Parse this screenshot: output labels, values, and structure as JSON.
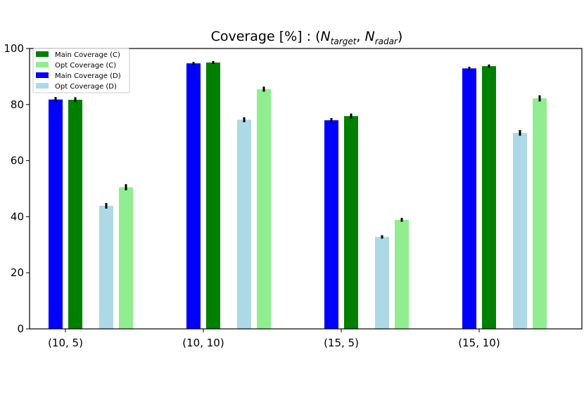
{
  "chart_data": {
    "type": "bar",
    "title": {
      "prefix": "Coverage [%] : (",
      "n1": "N",
      "sub1": "target",
      "sep": ", ",
      "n2": "N",
      "sub2": "radar",
      "suffix": ")"
    },
    "xlabel": "",
    "ylabel": "",
    "ylim": [
      0,
      100
    ],
    "yticks": [
      "0",
      "20",
      "40",
      "60",
      "80",
      "100"
    ],
    "categories": [
      "(10, 5)",
      "(10, 10)",
      "(15, 5)",
      "(15, 10)"
    ],
    "series": [
      {
        "name": "Main Coverage (D)",
        "color": "#0000ff",
        "values": [
          81.8,
          94.7,
          74.4,
          92.9
        ],
        "errors": [
          0.9,
          0.5,
          0.8,
          0.6
        ]
      },
      {
        "name": "Main Coverage (C)",
        "color": "#008000",
        "values": [
          81.7,
          95.0,
          75.9,
          93.7
        ],
        "errors": [
          0.9,
          0.5,
          0.9,
          0.6
        ]
      },
      {
        "name": "Opt Coverage (D)",
        "color": "#add8e6",
        "values": [
          43.9,
          74.6,
          32.8,
          69.9
        ],
        "errors": [
          1.0,
          0.9,
          0.6,
          1.0
        ]
      },
      {
        "name": "Opt Coverage (C)",
        "color": "#90ee90",
        "values": [
          50.5,
          85.5,
          38.9,
          82.2
        ],
        "errors": [
          1.1,
          0.9,
          0.7,
          1.1
        ]
      }
    ],
    "legend": {
      "placement": "top-left",
      "order": [
        "Main Coverage (C)",
        "Opt Coverage (C)",
        "Main Coverage (D)",
        "Opt Coverage (D)"
      ]
    },
    "grid": false
  }
}
